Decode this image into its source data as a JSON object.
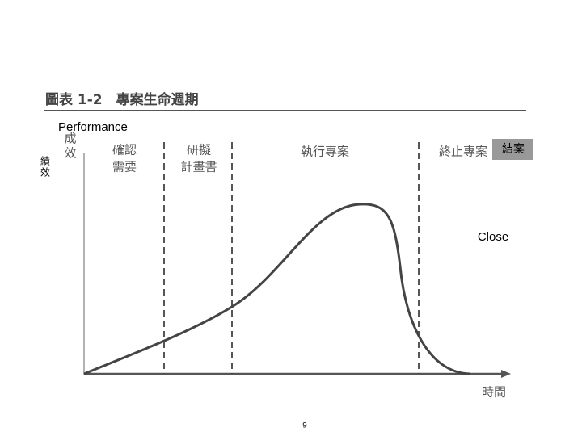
{
  "title": "圖表 1-2　專案生命週期",
  "english_y_label": "Performance",
  "chinese_y_label": {
    "lines": [
      "績",
      "效"
    ]
  },
  "y_axis_label": {
    "lines": [
      "成",
      "效"
    ]
  },
  "phases": [
    {
      "lines": [
        "確認",
        "需要"
      ]
    },
    {
      "lines": [
        "研擬",
        "計畫書"
      ]
    },
    {
      "lines": [
        "執行專案"
      ]
    },
    {
      "lines": [
        "終止專案"
      ]
    }
  ],
  "close_box": "結案",
  "close_label": "Close",
  "x_axis_label": "時間",
  "page_number": "9"
}
